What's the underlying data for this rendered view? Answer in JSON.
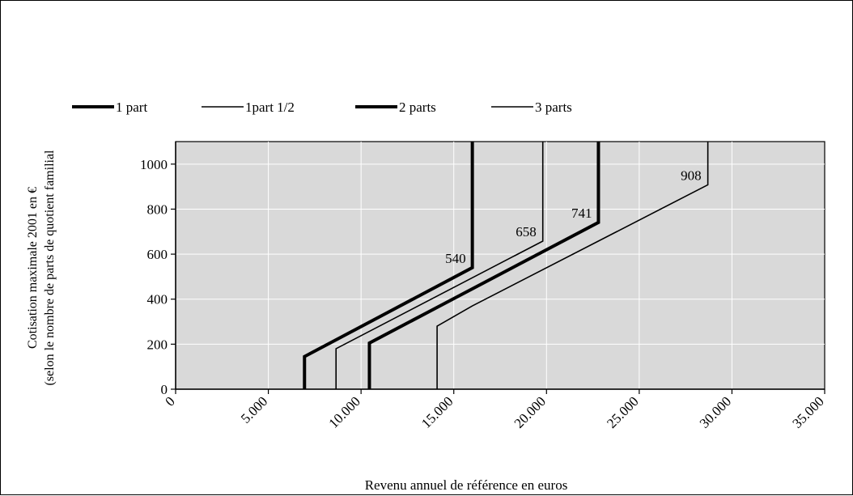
{
  "chart_data": {
    "type": "line",
    "title": "",
    "xlabel": "Revenu annuel de référence en euros",
    "ylabel_line1": "Cotisation maximale  2001 en    €",
    "ylabel_line2": "(selon le nombre de parts de quotient familial",
    "xlim": [
      0,
      35000
    ],
    "ylim": [
      0,
      1100
    ],
    "x_ticks": [
      0,
      5000,
      10000,
      15000,
      20000,
      25000,
      30000,
      35000
    ],
    "x_tick_labels": [
      "0",
      "5.000",
      "10.000",
      "15.000",
      "20.000",
      "25.000",
      "30.000",
      "35.000"
    ],
    "y_ticks": [
      0,
      200,
      400,
      600,
      800,
      1000
    ],
    "y_tick_labels": [
      "0",
      "200",
      "400",
      "600",
      "800",
      "1000"
    ],
    "grid": "horizontal and vertical",
    "legend_position": "top",
    "series": [
      {
        "name": "1 part",
        "style": "thick",
        "x": [
          6950,
          6950,
          16000,
          16000
        ],
        "y": [
          0,
          145,
          540,
          1100
        ]
      },
      {
        "name": "1part 1/2",
        "style": "thin",
        "x": [
          8650,
          8650,
          19800,
          19800
        ],
        "y": [
          0,
          180,
          658,
          1100
        ]
      },
      {
        "name": "2 parts",
        "style": "thick",
        "x": [
          10450,
          10450,
          22800,
          22800
        ],
        "y": [
          0,
          205,
          741,
          1100
        ]
      },
      {
        "name": "3 parts",
        "style": "thin",
        "x": [
          14100,
          14100,
          16000,
          28700,
          28700
        ],
        "y": [
          0,
          280,
          370,
          908,
          1100
        ]
      }
    ],
    "annotations": [
      {
        "text": "540",
        "x": 16000,
        "y": 540
      },
      {
        "text": "658",
        "x": 19800,
        "y": 658
      },
      {
        "text": "741",
        "x": 22800,
        "y": 741
      },
      {
        "text": "908",
        "x": 28700,
        "y": 908
      }
    ],
    "colors": {
      "plot_background": "#d9d9d9",
      "line": "#000000",
      "grid": "#ffffff"
    }
  }
}
